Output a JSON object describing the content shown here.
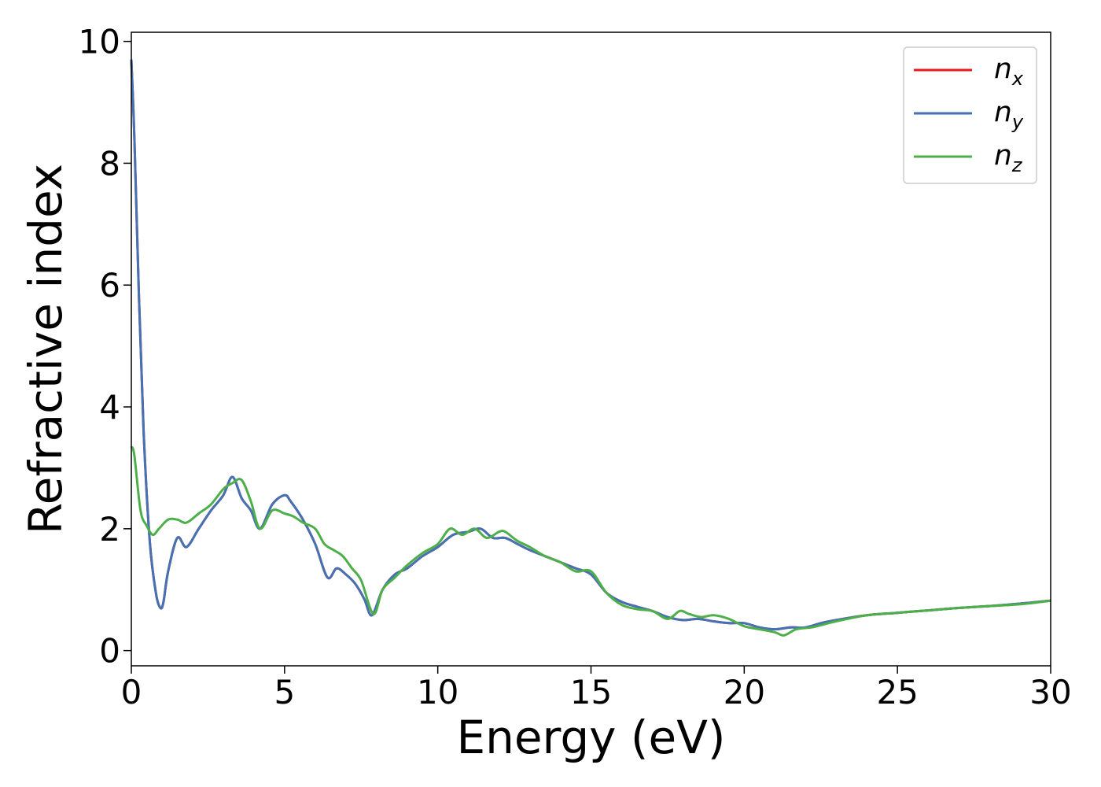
{
  "chart_data": {
    "type": "line",
    "xlabel": "Energy (eV)",
    "ylabel": "Refractive index",
    "xlim": [
      0,
      30
    ],
    "ylim": [
      -0.25,
      10.15
    ],
    "xticks": [
      "0",
      "5",
      "10",
      "15",
      "20",
      "25",
      "30"
    ],
    "yticks": [
      "0",
      "2",
      "4",
      "6",
      "8",
      "10"
    ],
    "grid": false,
    "legend_position": "top-right",
    "series": [
      {
        "name": "n",
        "subscript": "x",
        "color": "#e41a1c",
        "x": [
          0,
          0.1,
          0.25,
          0.4,
          0.6,
          0.8,
          0.95,
          1.05,
          1.2,
          1.5,
          1.8,
          2.2,
          2.6,
          3.0,
          3.3,
          3.6,
          3.9,
          4.2,
          4.6,
          5.0,
          5.2,
          5.6,
          6.0,
          6.4,
          6.7,
          7.0,
          7.3,
          7.6,
          7.85,
          8.2,
          8.6,
          9.0,
          9.5,
          10.0,
          10.5,
          11.0,
          11.4,
          11.8,
          12.2,
          12.6,
          13.0,
          13.5,
          14.0,
          14.5,
          15.0,
          15.5,
          16.0,
          16.5,
          17.0,
          17.5,
          18.0,
          18.5,
          19.0,
          19.5,
          20.0,
          20.5,
          21.0,
          21.5,
          22.0,
          22.5,
          23.0,
          24.0,
          25.0,
          26.0,
          27.0,
          28.0,
          29.0,
          30.0
        ],
        "y": [
          9.7,
          8.4,
          5.8,
          3.6,
          1.8,
          0.95,
          0.7,
          0.8,
          1.3,
          1.85,
          1.7,
          2.0,
          2.3,
          2.55,
          2.85,
          2.5,
          2.3,
          2.0,
          2.4,
          2.55,
          2.45,
          2.15,
          1.75,
          1.2,
          1.35,
          1.25,
          1.1,
          0.85,
          0.58,
          1.0,
          1.25,
          1.35,
          1.55,
          1.7,
          1.9,
          1.95,
          2.0,
          1.85,
          1.85,
          1.75,
          1.65,
          1.55,
          1.45,
          1.35,
          1.25,
          0.95,
          0.8,
          0.72,
          0.65,
          0.55,
          0.5,
          0.52,
          0.48,
          0.45,
          0.45,
          0.38,
          0.35,
          0.38,
          0.38,
          0.45,
          0.5,
          0.58,
          0.62,
          0.66,
          0.7,
          0.73,
          0.77,
          0.82
        ]
      },
      {
        "name": "n",
        "subscript": "y",
        "color": "#4472b4",
        "x": [
          0,
          0.1,
          0.25,
          0.4,
          0.6,
          0.8,
          0.95,
          1.05,
          1.2,
          1.5,
          1.8,
          2.2,
          2.6,
          3.0,
          3.3,
          3.6,
          3.9,
          4.2,
          4.6,
          5.0,
          5.2,
          5.6,
          6.0,
          6.4,
          6.7,
          7.0,
          7.3,
          7.6,
          7.85,
          8.2,
          8.6,
          9.0,
          9.5,
          10.0,
          10.5,
          11.0,
          11.4,
          11.8,
          12.2,
          12.6,
          13.0,
          13.5,
          14.0,
          14.5,
          15.0,
          15.5,
          16.0,
          16.5,
          17.0,
          17.5,
          18.0,
          18.5,
          19.0,
          19.5,
          20.0,
          20.5,
          21.0,
          21.5,
          22.0,
          22.5,
          23.0,
          24.0,
          25.0,
          26.0,
          27.0,
          28.0,
          29.0,
          30.0
        ],
        "y": [
          9.7,
          8.4,
          5.8,
          3.6,
          1.8,
          0.95,
          0.7,
          0.8,
          1.3,
          1.85,
          1.7,
          2.0,
          2.3,
          2.55,
          2.85,
          2.5,
          2.3,
          2.0,
          2.4,
          2.55,
          2.45,
          2.15,
          1.75,
          1.2,
          1.35,
          1.25,
          1.1,
          0.85,
          0.58,
          1.0,
          1.25,
          1.35,
          1.55,
          1.7,
          1.9,
          1.95,
          2.0,
          1.85,
          1.85,
          1.75,
          1.65,
          1.55,
          1.45,
          1.35,
          1.25,
          0.95,
          0.8,
          0.72,
          0.65,
          0.55,
          0.5,
          0.52,
          0.48,
          0.45,
          0.45,
          0.38,
          0.35,
          0.38,
          0.38,
          0.45,
          0.5,
          0.58,
          0.62,
          0.66,
          0.7,
          0.73,
          0.77,
          0.82
        ]
      },
      {
        "name": "n",
        "subscript": "z",
        "color": "#4daf4a",
        "x": [
          0,
          0.1,
          0.3,
          0.5,
          0.7,
          0.9,
          1.2,
          1.5,
          1.8,
          2.2,
          2.6,
          3.0,
          3.3,
          3.6,
          3.9,
          4.2,
          4.6,
          5.0,
          5.3,
          5.6,
          6.0,
          6.3,
          6.6,
          6.9,
          7.2,
          7.5,
          7.9,
          8.2,
          8.6,
          9.0,
          9.5,
          10.0,
          10.4,
          10.8,
          11.2,
          11.6,
          12.0,
          12.2,
          12.6,
          13.0,
          13.5,
          14.0,
          14.5,
          15.0,
          15.5,
          16.0,
          16.5,
          17.0,
          17.5,
          17.9,
          18.2,
          18.6,
          19.0,
          19.5,
          20.0,
          20.5,
          21.0,
          21.3,
          21.7,
          22.2,
          22.6,
          23.0,
          24.0,
          25.0,
          26.0,
          27.0,
          28.0,
          29.0,
          30.0
        ],
        "y": [
          3.35,
          3.2,
          2.3,
          2.05,
          1.9,
          2.0,
          2.15,
          2.15,
          2.1,
          2.25,
          2.4,
          2.65,
          2.75,
          2.8,
          2.45,
          2.0,
          2.3,
          2.25,
          2.2,
          2.1,
          2.0,
          1.75,
          1.65,
          1.55,
          1.35,
          1.15,
          0.6,
          1.0,
          1.2,
          1.4,
          1.6,
          1.75,
          2.0,
          1.9,
          2.0,
          1.85,
          1.95,
          1.95,
          1.8,
          1.7,
          1.55,
          1.45,
          1.3,
          1.3,
          0.95,
          0.75,
          0.68,
          0.65,
          0.52,
          0.65,
          0.6,
          0.55,
          0.58,
          0.52,
          0.4,
          0.35,
          0.3,
          0.25,
          0.35,
          0.38,
          0.43,
          0.48,
          0.58,
          0.62,
          0.66,
          0.7,
          0.73,
          0.76,
          0.82
        ]
      }
    ]
  }
}
